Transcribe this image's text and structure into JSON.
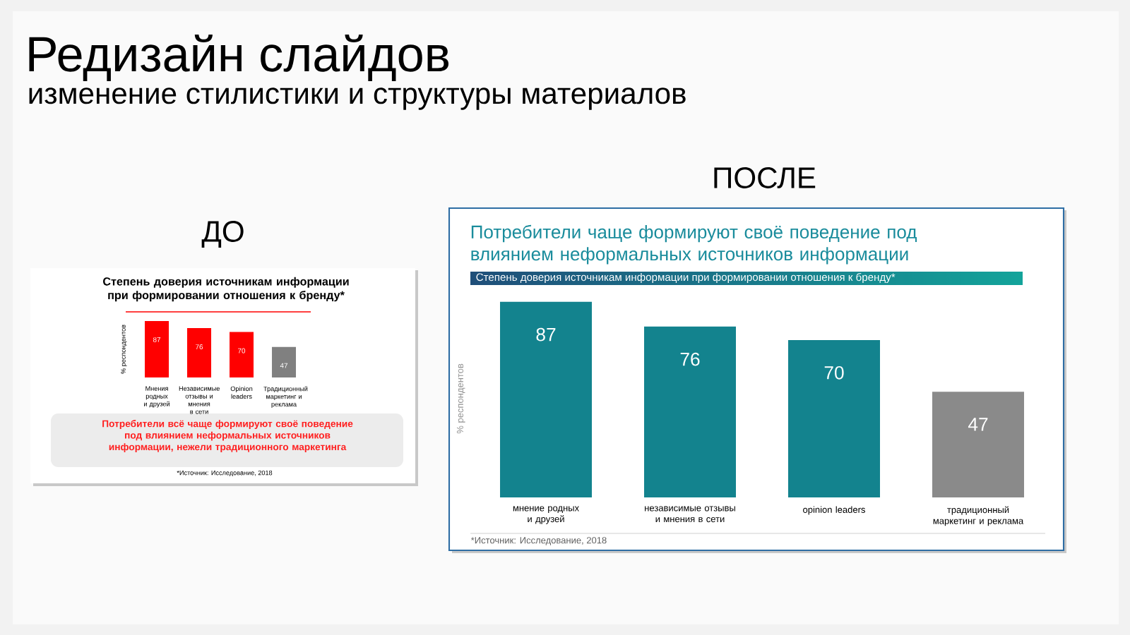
{
  "chart_data": [
    {
      "type": "bar",
      "title": "Степень доверия источникам  информации при формировании отношения к бренду*",
      "ylabel": "% респондентов",
      "categories": [
        "Мнения родных и друзей",
        "Независимые отзывы и мнения в сети",
        "Opinion leaders",
        "Традиционный маркетинг и реклама"
      ],
      "values": [
        87,
        76,
        70,
        47
      ],
      "colors": [
        "#ff0000",
        "#ff0000",
        "#ff0000",
        "#808080"
      ],
      "data_labels": true,
      "annotations": [
        "Редизайн слайдов",
        "изменение стилистики и структуры материалов",
        "ДО",
        "Потребители всё чаще формируют своё  поведение под влиянием неформальных  источников информации, нежели традиционного маркетинга",
        "*Источник: Исследование, 2018"
      ]
    },
    {
      "type": "bar",
      "title": "Потребители чаще формируют своё поведение под влиянием неформальных источников информации",
      "subtitle": "Степень доверия источникам информации при формировании отношения к бренду*",
      "ylabel": "% респондентов",
      "categories": [
        "мнение родных и друзей",
        "независимые отзывы и мнения в сети",
        "opinion leaders",
        "традиционный маркетинг и реклама"
      ],
      "values": [
        87,
        76,
        70,
        47
      ],
      "colors": [
        "#13838e",
        "#13838e",
        "#13838e",
        "#8a8a8a"
      ],
      "data_labels": true,
      "annotations": [
        "ПОСЛЕ",
        "*Источник: Исследование, 2018"
      ]
    }
  ]
}
